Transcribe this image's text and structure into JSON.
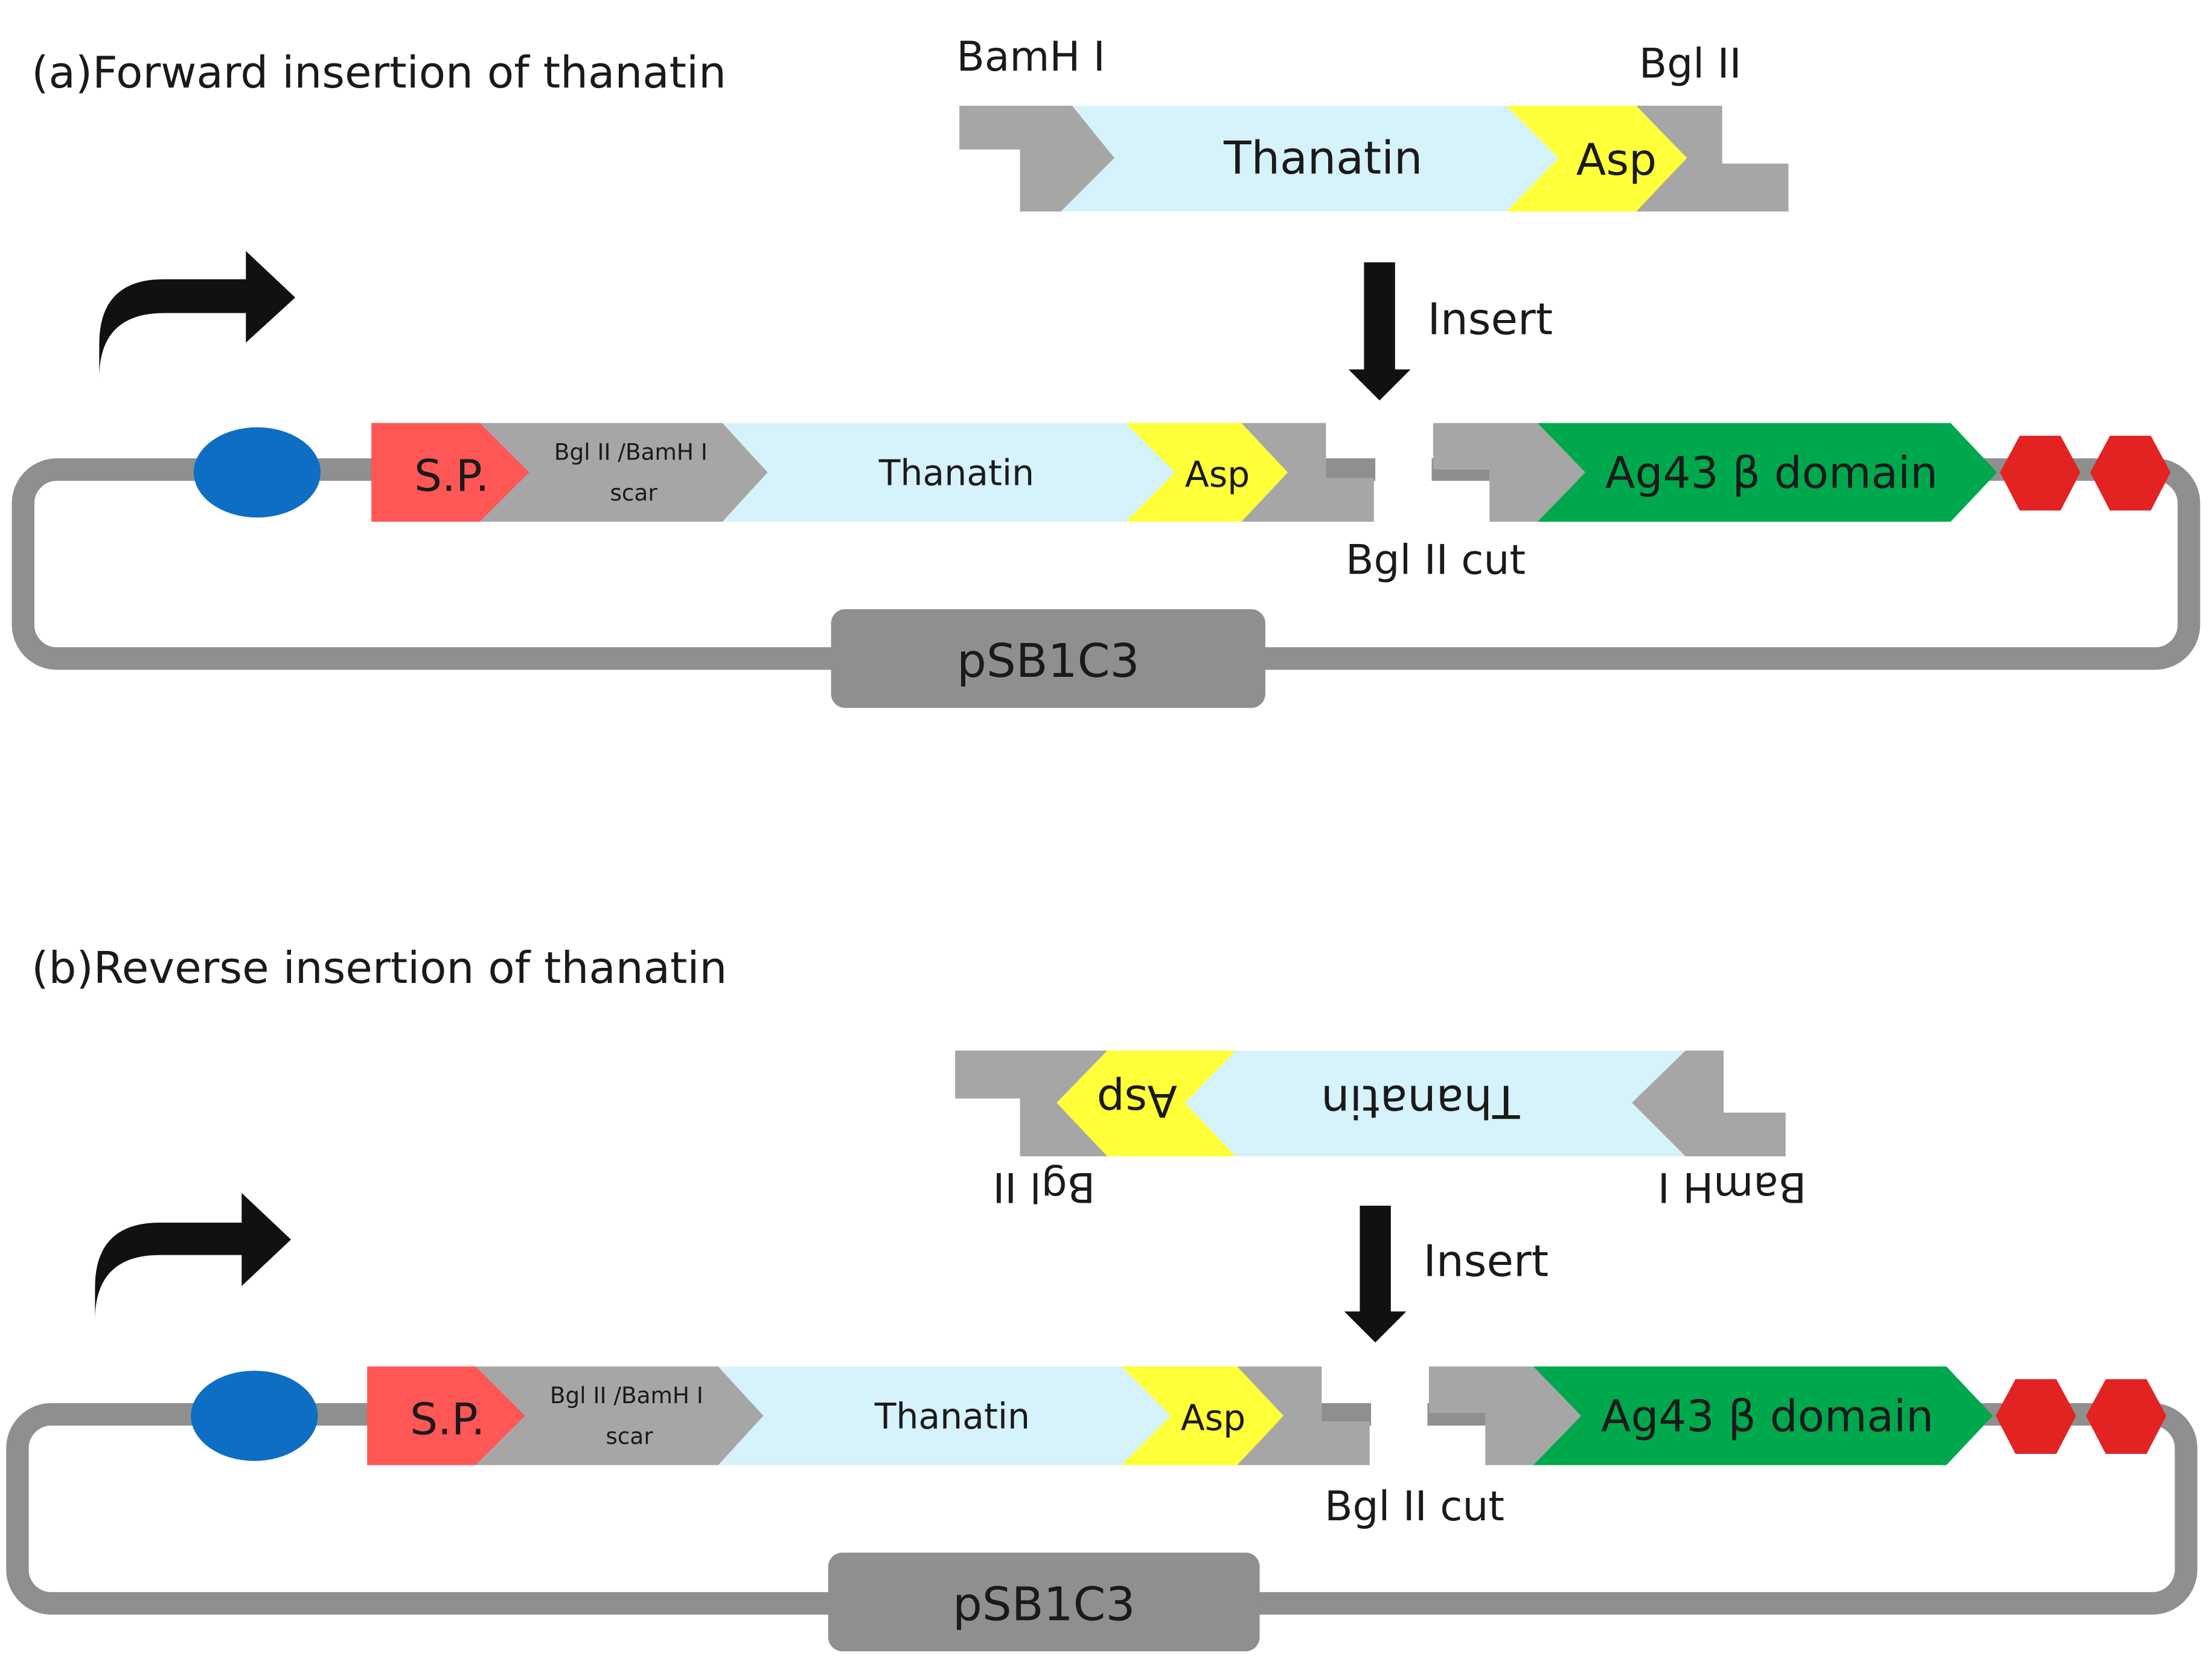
{
  "colors": {
    "backbone": "#8f8f8f",
    "flank": "#a6a6a6",
    "thanatin": "#d6f2fb",
    "asp": "#ffff3a",
    "signal_peptide": "#ff5656",
    "scar": "#a6a6a6",
    "ag43": "#00a84d",
    "rbs": "#0d6ec4",
    "terminator": "#e32222",
    "promoter": "#111111",
    "arrow": "#111111"
  },
  "panels": [
    {
      "title": "(a)Forward insertion of thanatin",
      "insert_orientation": "forward",
      "insert": {
        "thanatin": "Thanatin",
        "asp": "Asp",
        "site_left": "BamH I",
        "site_right": "Bgl II"
      },
      "arrow_label": "Insert",
      "plasmid": {
        "sp": "S.P.",
        "scar_line1": "Bgl II /BamH I",
        "scar_line2": "scar",
        "thanatin": "Thanatin",
        "asp": "Asp",
        "ag43": "Ag43 β domain",
        "cut_label": "Bgl II cut",
        "backbone": "pSB1C3"
      },
      "icons": [
        "promoter-arrow-icon",
        "rbs-oval-icon",
        "terminator-hexagon-icon"
      ]
    },
    {
      "title": "(b)Reverse insertion of thanatin",
      "insert_orientation": "reverse",
      "insert": {
        "thanatin": "Thanatin",
        "asp": "Asp",
        "site_left": "BamH I",
        "site_right": "Bgl II"
      },
      "arrow_label": "Insert",
      "plasmid": {
        "sp": "S.P.",
        "scar_line1": "Bgl II /BamH I",
        "scar_line2": "scar",
        "thanatin": "Thanatin",
        "asp": "Asp",
        "ag43": "Ag43 β domain",
        "cut_label": "Bgl II cut",
        "backbone": "pSB1C3"
      },
      "icons": [
        "promoter-arrow-icon",
        "rbs-oval-icon",
        "terminator-hexagon-icon"
      ]
    }
  ]
}
